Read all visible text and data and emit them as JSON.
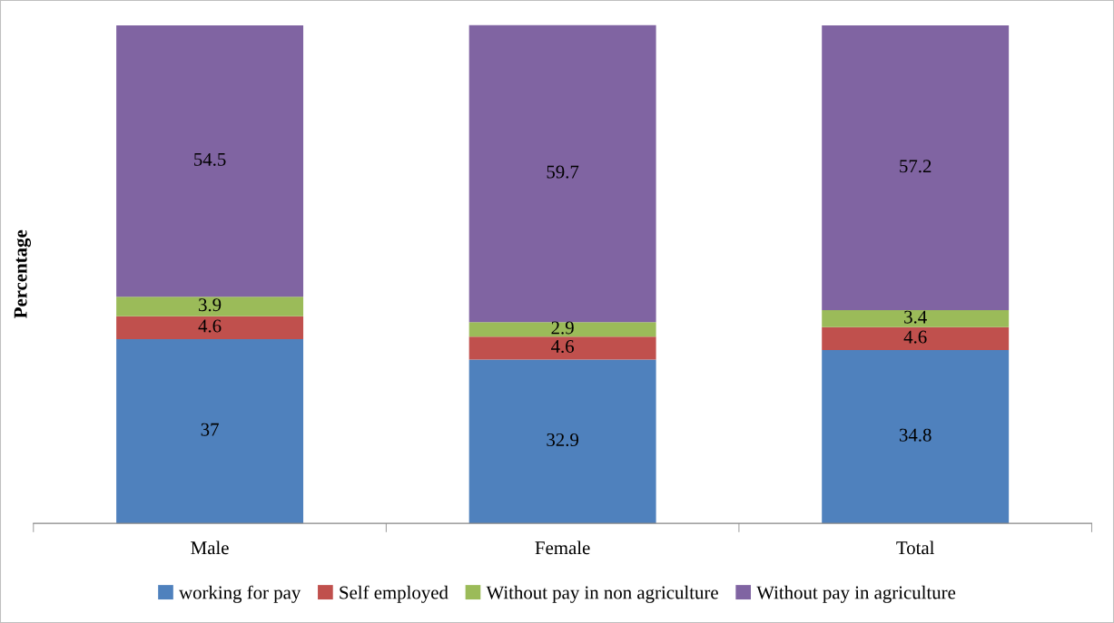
{
  "chart_data": {
    "type": "bar",
    "ylabel": "Percentage",
    "categories": [
      "Male",
      "Female",
      "Total"
    ],
    "stacked": true,
    "relative": false,
    "data_labels": true,
    "legend": "bottom",
    "grid": false,
    "series": [
      {
        "name": "working for pay",
        "color": "#4f81bd",
        "values": [
          37,
          32.9,
          34.8
        ]
      },
      {
        "name": "Self employed",
        "color": "#c0504d",
        "values": [
          4.6,
          4.6,
          4.6
        ]
      },
      {
        "name": "Without pay in non agriculture",
        "color": "#9bbb59",
        "values": [
          3.9,
          2.9,
          3.4
        ]
      },
      {
        "name": "Without pay in agriculture",
        "color": "#8064a2",
        "values": [
          54.5,
          59.7,
          57.2
        ]
      }
    ]
  }
}
